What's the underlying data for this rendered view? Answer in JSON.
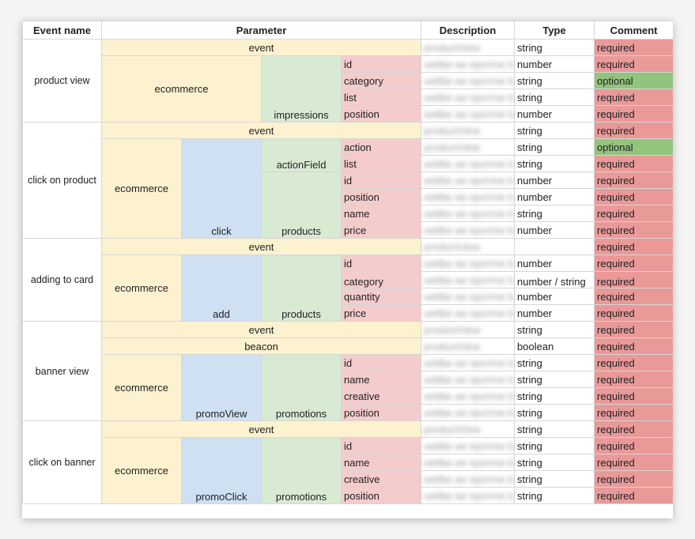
{
  "headers": {
    "event_name": "Event name",
    "parameter": "Parameter",
    "description": "Description",
    "type": "Type",
    "comment": "Comment"
  },
  "params": {
    "event": "event",
    "ecommerce": "ecommerce",
    "beacon": "beacon",
    "impressions": "impressions",
    "actionField": "actionField",
    "click": "click",
    "products": "products",
    "add": "add",
    "promoView": "promoView",
    "promoClick": "promoClick",
    "promotions": "promotions",
    "id": "id",
    "category": "category",
    "list": "list",
    "position": "position",
    "action": "action",
    "name": "name",
    "price": "price",
    "quantity": "quantity",
    "creative": "creative"
  },
  "types": {
    "string": "string",
    "number": "number",
    "boolean": "boolean",
    "number_string": "number / string"
  },
  "comments": {
    "required": "required",
    "optional": "optional"
  },
  "events": [
    {
      "name": "product view"
    },
    {
      "name": "click on product"
    },
    {
      "name": "adding to card"
    },
    {
      "name": "banner view"
    },
    {
      "name": "click on banner"
    }
  ],
  "blurred": {
    "short": "productView",
    "long": "неttbe ии пpотmе b"
  },
  "colors": {
    "event_bg": "#fdf2cf",
    "level2_bg": "#cfe0f3",
    "level3_bg": "#d9ead3",
    "field_bg": "#f4cccc",
    "required_bg": "#ea9999",
    "optional_bg": "#93c47d"
  }
}
